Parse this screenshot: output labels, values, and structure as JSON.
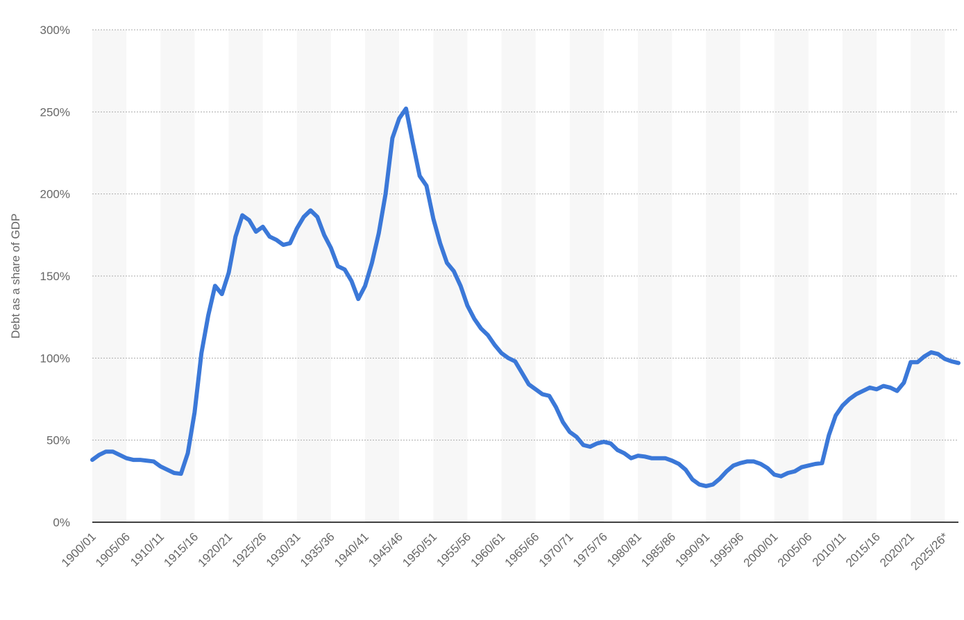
{
  "chart_data": {
    "type": "line",
    "y_label": "Debt as a share of GDP",
    "categories": [
      "1900/01",
      null,
      null,
      null,
      null,
      "1905/06",
      null,
      null,
      null,
      null,
      "1910/11",
      null,
      null,
      null,
      null,
      "1915/16",
      null,
      null,
      null,
      null,
      "1920/21",
      null,
      null,
      null,
      null,
      "1925/26",
      null,
      null,
      null,
      null,
      "1930/31",
      null,
      null,
      null,
      null,
      "1935/36",
      null,
      null,
      null,
      null,
      "1940/41",
      null,
      null,
      null,
      null,
      "1945/46",
      null,
      null,
      null,
      null,
      "1950/51",
      null,
      null,
      null,
      null,
      "1955/56",
      null,
      null,
      null,
      null,
      "1960/61",
      null,
      null,
      null,
      null,
      "1965/66",
      null,
      null,
      null,
      null,
      "1970/71",
      null,
      null,
      null,
      null,
      "1975/76",
      null,
      null,
      null,
      null,
      "1980/81",
      null,
      null,
      null,
      null,
      "1985/86",
      null,
      null,
      null,
      null,
      "1990/91",
      null,
      null,
      null,
      null,
      "1995/96",
      null,
      null,
      null,
      null,
      "2000/01",
      null,
      null,
      null,
      null,
      "2005/06",
      null,
      null,
      null,
      null,
      "2010/11",
      null,
      null,
      null,
      null,
      "2015/16",
      null,
      null,
      null,
      null,
      "2020/21",
      null,
      null,
      null,
      null,
      "2025/26*",
      null,
      null
    ],
    "series": [
      {
        "name": "Debt as a share of GDP",
        "color": "#3b78d8",
        "values": [
          38,
          41,
          43,
          43,
          41,
          39,
          38,
          38,
          37.5,
          37,
          34,
          32,
          30,
          29.5,
          42,
          67,
          103,
          126,
          144,
          139,
          152,
          174,
          187,
          184,
          177,
          180,
          174,
          172,
          169,
          170,
          179,
          186,
          190,
          186,
          175,
          167,
          156,
          154,
          147,
          136,
          144,
          158,
          176,
          200,
          234,
          246,
          252,
          231,
          211,
          205,
          185,
          170,
          158,
          153,
          144,
          132,
          124,
          118,
          114,
          108,
          103,
          100,
          98,
          91,
          84,
          81,
          78,
          77,
          70,
          61,
          55,
          52,
          47,
          46,
          48,
          49,
          48,
          44,
          42,
          39,
          40.5,
          40,
          39,
          39,
          39,
          37.5,
          35.5,
          32,
          26,
          23,
          22,
          23,
          26.5,
          31,
          34.5,
          36,
          37,
          37,
          35.5,
          33,
          29,
          28,
          30,
          31,
          33.5,
          34.5,
          35.5,
          36,
          53,
          65,
          71,
          75,
          78,
          80,
          82,
          81,
          83,
          82,
          80,
          85,
          97.5,
          97.5,
          101,
          103.5,
          102.5,
          99.5,
          98,
          97
        ]
      }
    ],
    "ylim": [
      0,
      300
    ],
    "yticks": [
      {
        "value": 0,
        "label": "0%"
      },
      {
        "value": 50,
        "label": "50%"
      },
      {
        "value": 100,
        "label": "100%"
      },
      {
        "value": 150,
        "label": "150%"
      },
      {
        "value": 200,
        "label": "200%"
      },
      {
        "value": 250,
        "label": "250%"
      },
      {
        "value": 300,
        "label": "300%"
      }
    ],
    "grid": true
  }
}
